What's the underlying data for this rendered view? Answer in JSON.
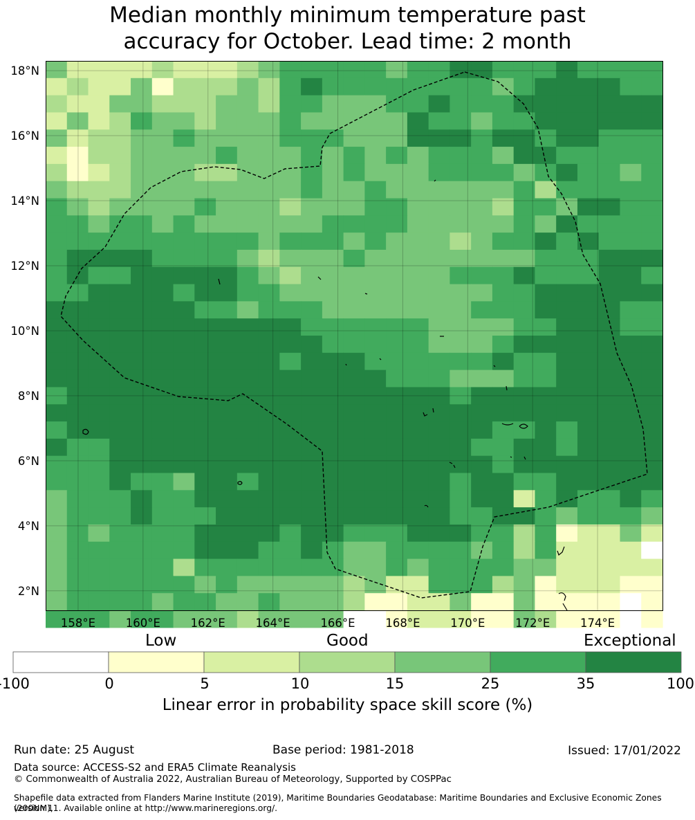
{
  "title": {
    "line1": "Median monthly minimum temperature past",
    "line2": "accuracy for October. Lead time: 2 month"
  },
  "map": {
    "lon_range": [
      157,
      176
    ],
    "lat_range": [
      1.4,
      18.3
    ],
    "lon_ticks": [
      "158°E",
      "160°E",
      "162°E",
      "164°E",
      "166°E",
      "168°E",
      "170°E",
      "172°E",
      "174°E"
    ],
    "lat_ticks": [
      "18°N",
      "16°N",
      "14°N",
      "12°N",
      "10°N",
      "8°N",
      "6°N",
      "4°N",
      "2°N"
    ],
    "grid": true,
    "boundary": "dashed EEZ outline",
    "colors": {
      "neg": "#ffffff",
      "c0": "#ffffcc",
      "c5": "#d9f0a3",
      "c10": "#addd8e",
      "c15": "#78c679",
      "c25": "#41ab5d",
      "c35": "#238443"
    }
  },
  "colorbar": {
    "categories": [
      "Low",
      "Good",
      "Exceptional"
    ],
    "ticks": [
      "-100",
      "0",
      "5",
      "10",
      "15",
      "25",
      "35",
      "100"
    ],
    "label": "Linear error in probability space skill score (%)"
  },
  "footer": {
    "run_date": "Run date: 25 August",
    "base_period": "Base period: 1981-2018",
    "issued": "Issued: 17/01/2022",
    "data_source": "Data source: ACCESS-S2 and ERA5 Climate Reanalysis",
    "copyright": "© Commonwealth of Australia 2022, Australian Bureau of Meteorology, Supported by COSPPac",
    "shapefile_line1": "Shapefile data extracted from Flanders Marine Institute (2019), Maritime Boundaries Geodatabase: Maritime Boundaries and Exclusive Economic Zones (200NM),",
    "shapefile_line2": "version 11. Available online at http://www.marineregions.org/."
  }
}
